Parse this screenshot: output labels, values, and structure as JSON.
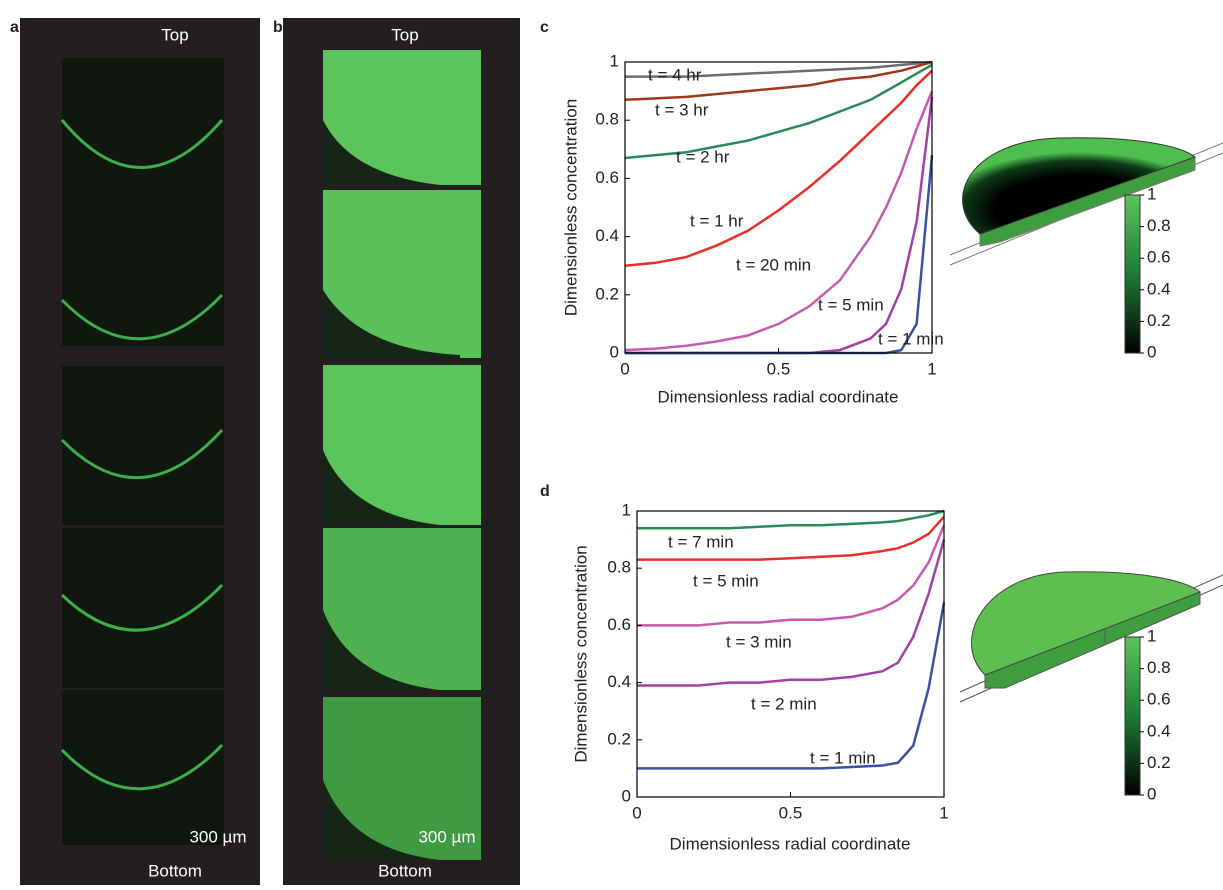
{
  "panels": {
    "a": {
      "label": "a",
      "top": "Top",
      "bottom": "Bottom",
      "scale": "300 µm"
    },
    "b": {
      "label": "b",
      "top": "Top",
      "bottom": "Bottom",
      "scale": "300 µm"
    }
  },
  "chart_data": [
    {
      "type": "line",
      "label": "c",
      "xlabel": "Dimensionless radial coordinate",
      "ylabel": "Dimensionless concentration",
      "x": [
        0,
        0.1,
        0.2,
        0.3,
        0.4,
        0.5,
        0.6,
        0.7,
        0.8,
        0.85,
        0.9,
        0.95,
        1
      ],
      "xlim": [
        0,
        1
      ],
      "ylim": [
        0,
        1
      ],
      "xticks": [
        0,
        0.5,
        1
      ],
      "yticks": [
        0,
        0.2,
        0.4,
        0.6,
        0.8,
        1
      ],
      "series": [
        {
          "name": "t = 4 hr",
          "color": "#6d6d6d",
          "values": [
            0.95,
            0.95,
            0.95,
            0.955,
            0.96,
            0.965,
            0.97,
            0.975,
            0.98,
            0.985,
            0.99,
            0.995,
            1
          ]
        },
        {
          "name": "t = 3 hr",
          "color": "#a0391c",
          "values": [
            0.87,
            0.875,
            0.88,
            0.89,
            0.9,
            0.91,
            0.92,
            0.94,
            0.95,
            0.96,
            0.97,
            0.985,
            1
          ]
        },
        {
          "name": "t = 2 hr",
          "color": "#2a8a57",
          "values": [
            0.67,
            0.68,
            0.69,
            0.71,
            0.73,
            0.76,
            0.79,
            0.83,
            0.87,
            0.9,
            0.93,
            0.96,
            0.99
          ]
        },
        {
          "name": "t = 1 hr",
          "color": "#e8302a",
          "values": [
            0.3,
            0.31,
            0.33,
            0.37,
            0.42,
            0.49,
            0.57,
            0.66,
            0.76,
            0.81,
            0.86,
            0.92,
            0.97
          ]
        },
        {
          "name": "t = 20 min",
          "color": "#c55bb0",
          "values": [
            0.01,
            0.015,
            0.025,
            0.04,
            0.06,
            0.1,
            0.16,
            0.25,
            0.4,
            0.5,
            0.62,
            0.77,
            0.9
          ]
        },
        {
          "name": "t = 5 min",
          "color": "#a43fa6",
          "values": [
            0,
            0,
            0,
            0,
            0,
            0,
            0,
            0.01,
            0.05,
            0.1,
            0.22,
            0.45,
            0.88
          ]
        },
        {
          "name": "t = 1 min",
          "color": "#3b4fa5",
          "values": [
            0,
            0,
            0,
            0,
            0,
            0,
            0,
            0,
            0,
            0,
            0.01,
            0.1,
            0.68
          ]
        }
      ],
      "colorbar_ticks": [
        0,
        0.2,
        0.4,
        0.6,
        0.8,
        1
      ]
    },
    {
      "type": "line",
      "label": "d",
      "xlabel": "Dimensionless radial coordinate",
      "ylabel": "Dimensionless concentration",
      "x": [
        0,
        0.1,
        0.2,
        0.3,
        0.4,
        0.5,
        0.6,
        0.7,
        0.8,
        0.85,
        0.9,
        0.95,
        1
      ],
      "xlim": [
        0,
        1
      ],
      "ylim": [
        0,
        1
      ],
      "xticks": [
        0,
        0.5,
        1
      ],
      "yticks": [
        0,
        0.2,
        0.4,
        0.6,
        0.8,
        1
      ],
      "series": [
        {
          "name": "t = 7 min",
          "color": "#2a8a57",
          "values": [
            0.94,
            0.94,
            0.94,
            0.94,
            0.945,
            0.95,
            0.95,
            0.955,
            0.96,
            0.965,
            0.975,
            0.985,
            1
          ]
        },
        {
          "name": "t = 5 min",
          "color": "#e8302a",
          "values": [
            0.83,
            0.83,
            0.83,
            0.83,
            0.83,
            0.835,
            0.84,
            0.845,
            0.86,
            0.87,
            0.89,
            0.92,
            0.98
          ]
        },
        {
          "name": "t = 3 min",
          "color": "#c55bb0",
          "values": [
            0.6,
            0.6,
            0.6,
            0.61,
            0.61,
            0.62,
            0.62,
            0.63,
            0.66,
            0.69,
            0.74,
            0.82,
            0.95
          ]
        },
        {
          "name": "t = 2 min",
          "color": "#a43fa6",
          "values": [
            0.39,
            0.39,
            0.39,
            0.4,
            0.4,
            0.41,
            0.41,
            0.42,
            0.44,
            0.47,
            0.56,
            0.71,
            0.9
          ]
        },
        {
          "name": "t = 1 min",
          "color": "#3b4fa5",
          "values": [
            0.1,
            0.1,
            0.1,
            0.1,
            0.1,
            0.1,
            0.1,
            0.105,
            0.11,
            0.12,
            0.18,
            0.38,
            0.68
          ]
        }
      ],
      "colorbar_ticks": [
        0,
        0.2,
        0.4,
        0.6,
        0.8,
        1
      ]
    }
  ]
}
